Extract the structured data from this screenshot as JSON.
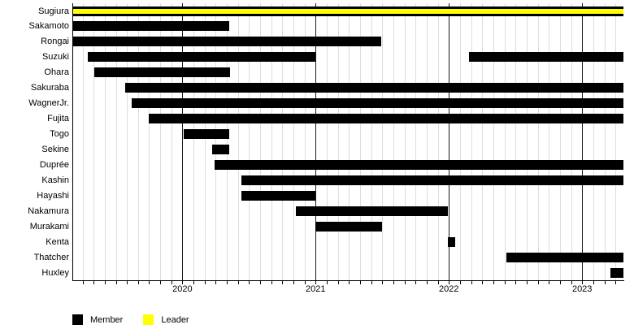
{
  "chart_data": {
    "type": "gantt",
    "description": "Membership timeline chart",
    "axis": {
      "start": 2019.18,
      "end": 2023.31,
      "minor_tick_unit": "month",
      "major_tick_unit": "year",
      "year_labels": [
        "2020",
        "2021",
        "2022",
        "2023"
      ],
      "grid": true
    },
    "legend": [
      {
        "label": "Member",
        "color": "#000000"
      },
      {
        "label": "Leader",
        "color": "#ffff00"
      }
    ],
    "colors": {
      "member": "#000000",
      "leader": "#ffff00",
      "grid_minor": "#dddddd",
      "grid_major": "#1a1a1a",
      "background": "#ffffff"
    },
    "rows": [
      {
        "name": "Sugiura",
        "segments": [
          {
            "start": 2019.18,
            "end": 2023.31,
            "role": "leader"
          }
        ]
      },
      {
        "name": "Sakamoto",
        "segments": [
          {
            "start": 2019.18,
            "end": 2020.35,
            "role": "member"
          }
        ]
      },
      {
        "name": "Rongai",
        "segments": [
          {
            "start": 2019.18,
            "end": 2021.49,
            "role": "member"
          }
        ]
      },
      {
        "name": "Suzuki",
        "segments": [
          {
            "start": 2019.29,
            "end": 2021.0,
            "role": "member"
          },
          {
            "start": 2022.15,
            "end": 2023.31,
            "role": "member"
          }
        ]
      },
      {
        "name": "Ohara",
        "segments": [
          {
            "start": 2019.34,
            "end": 2020.36,
            "role": "member"
          }
        ]
      },
      {
        "name": "Sakuraba",
        "segments": [
          {
            "start": 2019.57,
            "end": 2023.31,
            "role": "member"
          }
        ]
      },
      {
        "name": "WagnerJr.",
        "segments": [
          {
            "start": 2019.62,
            "end": 2023.31,
            "role": "member"
          }
        ]
      },
      {
        "name": "Fujita",
        "segments": [
          {
            "start": 2019.75,
            "end": 2023.31,
            "role": "member"
          }
        ]
      },
      {
        "name": "Togo",
        "segments": [
          {
            "start": 2020.01,
            "end": 2020.35,
            "role": "member"
          }
        ]
      },
      {
        "name": "Sekine",
        "segments": [
          {
            "start": 2020.22,
            "end": 2020.35,
            "role": "member"
          }
        ]
      },
      {
        "name": "Duprée",
        "segments": [
          {
            "start": 2020.24,
            "end": 2023.31,
            "role": "member"
          }
        ]
      },
      {
        "name": "Kashin",
        "segments": [
          {
            "start": 2020.44,
            "end": 2023.31,
            "role": "member"
          }
        ]
      },
      {
        "name": "Hayashi",
        "segments": [
          {
            "start": 2020.44,
            "end": 2021.0,
            "role": "member"
          }
        ]
      },
      {
        "name": "Nakamura",
        "segments": [
          {
            "start": 2020.85,
            "end": 2021.99,
            "role": "member"
          }
        ]
      },
      {
        "name": "Murakami",
        "segments": [
          {
            "start": 2021.0,
            "end": 2021.5,
            "role": "member"
          }
        ]
      },
      {
        "name": "Kenta",
        "segments": [
          {
            "start": 2021.99,
            "end": 2022.05,
            "role": "member"
          }
        ]
      },
      {
        "name": "Thatcher",
        "segments": [
          {
            "start": 2022.43,
            "end": 2023.31,
            "role": "member"
          }
        ]
      },
      {
        "name": "Huxley",
        "segments": [
          {
            "start": 2023.21,
            "end": 2023.31,
            "role": "member"
          }
        ]
      }
    ]
  }
}
